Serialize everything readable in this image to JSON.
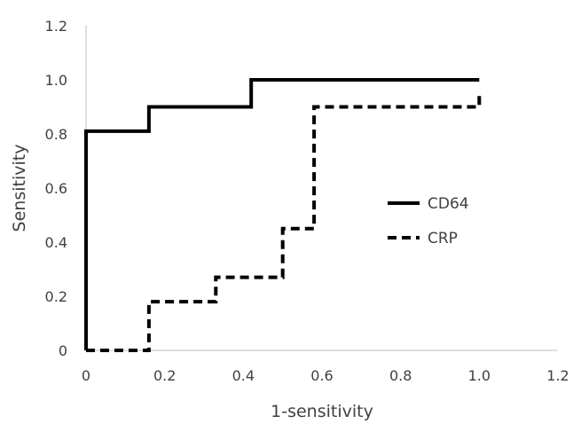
{
  "chart_data": {
    "type": "line",
    "title": "",
    "xlabel": "1-sensitivity",
    "ylabel": "Sensitivity",
    "xlim": [
      0,
      1.2
    ],
    "ylim": [
      0,
      1.2
    ],
    "x_ticks": [
      "0",
      "0.2",
      "0.4",
      "0.6",
      "0.8",
      "1.0",
      "1.2"
    ],
    "y_ticks": [
      "0",
      "0.2",
      "0.4",
      "0.6",
      "0.8",
      "1.0",
      "1.2"
    ],
    "grid": false,
    "legend": "center-right",
    "series": [
      {
        "name": "CD64",
        "style": "solid",
        "color": "#000000",
        "points": [
          [
            0,
            0
          ],
          [
            0,
            0.81
          ],
          [
            0.16,
            0.81
          ],
          [
            0.16,
            0.9
          ],
          [
            0.42,
            0.9
          ],
          [
            0.42,
            1.0
          ],
          [
            1.0,
            1.0
          ],
          [
            1.0,
            1.0
          ]
        ]
      },
      {
        "name": "CRP",
        "style": "dashed",
        "color": "#000000",
        "points": [
          [
            0,
            0
          ],
          [
            0.16,
            0
          ],
          [
            0.16,
            0.18
          ],
          [
            0.33,
            0.18
          ],
          [
            0.33,
            0.27
          ],
          [
            0.5,
            0.27
          ],
          [
            0.5,
            0.45
          ],
          [
            0.58,
            0.45
          ],
          [
            0.58,
            0.9
          ],
          [
            1.0,
            0.9
          ],
          [
            1.0,
            0.96
          ]
        ]
      }
    ]
  }
}
